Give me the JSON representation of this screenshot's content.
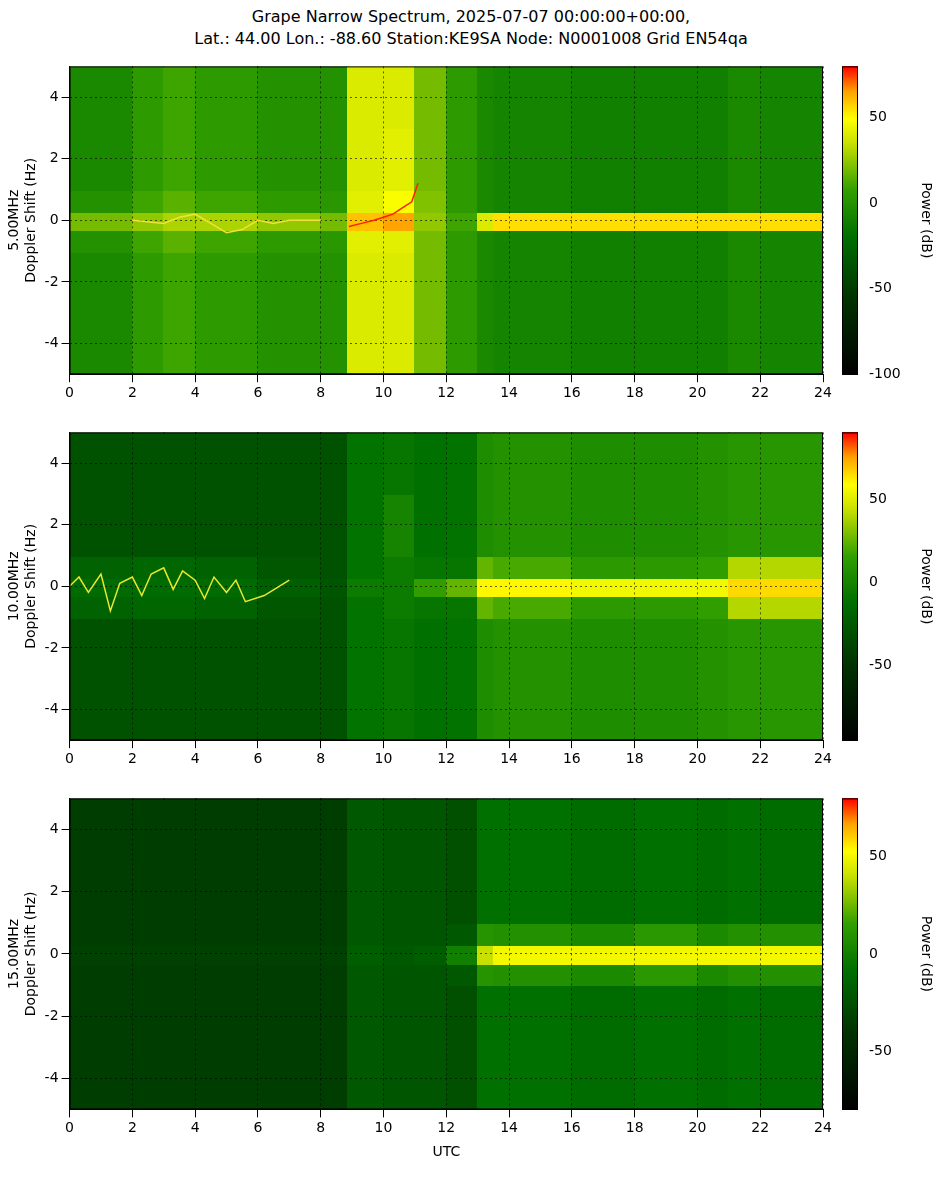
{
  "title": [
    "Grape Narrow Spectrum, 2025-07-07 00:00:00+00:00,",
    "Lat.: 44.00 Lon.: -88.60 Station:KE9SA Node: N0001008 Grid EN54qa"
  ],
  "chart_data": [
    {
      "type": "heatmap",
      "ylabel": [
        "5.00MHz",
        "Doppler Shift (Hz)"
      ],
      "xlim": [
        0,
        24
      ],
      "xticks": [
        0,
        2,
        4,
        6,
        8,
        10,
        12,
        14,
        16,
        18,
        20,
        22,
        24
      ],
      "ylim": [
        -5,
        5
      ],
      "yticks": [
        -4,
        -2,
        0,
        2,
        4
      ],
      "grid": true,
      "x_edges": [
        0,
        2,
        3,
        4,
        6,
        8,
        8.85,
        10,
        11,
        12,
        13,
        13.5,
        16,
        18,
        20,
        21,
        22,
        24
      ],
      "y_edges": [
        -5,
        -3,
        -1,
        -0.3,
        0.3,
        1,
        3,
        5
      ],
      "cells": [
        [
          -5,
          5,
          10,
          5,
          0,
          0,
          40,
          40,
          20,
          5,
          -5,
          -8,
          -10,
          -10,
          -10,
          -5,
          -8
        ],
        [
          -5,
          5,
          10,
          5,
          0,
          0,
          40,
          40,
          20,
          5,
          -5,
          -8,
          -10,
          -10,
          -10,
          -5,
          -8
        ],
        [
          0,
          10,
          15,
          10,
          5,
          3,
          42,
          42,
          20,
          5,
          -5,
          -8,
          -10,
          -10,
          -10,
          -5,
          -8
        ],
        [
          20,
          25,
          30,
          30,
          25,
          20,
          60,
          65,
          25,
          10,
          40,
          55,
          55,
          55,
          55,
          55,
          55
        ],
        [
          0,
          10,
          15,
          10,
          5,
          3,
          42,
          48,
          22,
          5,
          -5,
          -8,
          -10,
          -10,
          -10,
          -5,
          -8
        ],
        [
          -5,
          5,
          10,
          5,
          0,
          0,
          40,
          42,
          20,
          5,
          -5,
          -8,
          -10,
          -10,
          -10,
          -5,
          -8
        ],
        [
          -5,
          5,
          10,
          5,
          0,
          0,
          40,
          40,
          20,
          5,
          -5,
          -8,
          -10,
          -10,
          -10,
          -5,
          -8
        ]
      ],
      "colorbar": {
        "label": "Power (dB)",
        "range": [
          -100,
          80
        ],
        "ticks": [
          -100,
          -50,
          0,
          50
        ]
      },
      "traces": [
        {
          "x": [
            2,
            3,
            3.5,
            4,
            4.5,
            5,
            5.5,
            6,
            6.5,
            7,
            8
          ],
          "y": [
            0,
            -0.1,
            0.1,
            0.2,
            -0.1,
            -0.4,
            -0.3,
            0,
            -0.1,
            0,
            0
          ],
          "color": "#f0e040"
        },
        {
          "x": [
            8.9,
            9.3,
            9.7,
            10,
            10.3,
            10.6,
            10.9,
            11.1
          ],
          "y": [
            -0.2,
            -0.1,
            0,
            0.1,
            0.2,
            0.4,
            0.6,
            1.2
          ],
          "color": "#ff2000"
        }
      ]
    },
    {
      "type": "heatmap",
      "ylabel": [
        "10.00MHz",
        "Doppler Shift (Hz)"
      ],
      "xlim": [
        0,
        24
      ],
      "xticks": [
        0,
        2,
        4,
        6,
        8,
        10,
        12,
        14,
        16,
        18,
        20,
        22,
        24
      ],
      "ylim": [
        -5,
        5
      ],
      "yticks": [
        -4,
        -2,
        0,
        2,
        4
      ],
      "grid": true,
      "x_edges": [
        0,
        2,
        3,
        4,
        6,
        8,
        8.85,
        10,
        11,
        12,
        13,
        13.5,
        16,
        18,
        20,
        21,
        22,
        24
      ],
      "y_edges": [
        -5,
        -3,
        -1,
        -0.3,
        0.3,
        1,
        3,
        5
      ],
      "cells": [
        [
          -30,
          -30,
          -30,
          -30,
          -30,
          -30,
          -10,
          -8,
          -12,
          -10,
          5,
          8,
          5,
          5,
          8,
          10,
          10
        ],
        [
          -30,
          -30,
          -30,
          -30,
          -30,
          -30,
          -10,
          -8,
          -12,
          -10,
          5,
          8,
          5,
          5,
          8,
          10,
          10
        ],
        [
          -20,
          -18,
          -18,
          -20,
          -27,
          -30,
          -10,
          -5,
          -8,
          -8,
          25,
          20,
          12,
          12,
          15,
          40,
          40
        ],
        [
          -15,
          -15,
          -15,
          -15,
          -22,
          -28,
          -5,
          -5,
          15,
          25,
          60,
          60,
          55,
          55,
          55,
          65,
          65
        ],
        [
          -20,
          -18,
          -18,
          -20,
          -27,
          -30,
          -10,
          -5,
          -8,
          -8,
          25,
          20,
          12,
          12,
          15,
          40,
          40
        ],
        [
          -30,
          -30,
          -30,
          -30,
          -30,
          -30,
          -10,
          0,
          -12,
          -10,
          5,
          8,
          5,
          5,
          8,
          10,
          10
        ],
        [
          -30,
          -30,
          -30,
          -30,
          -30,
          -30,
          -10,
          -8,
          -12,
          -10,
          5,
          8,
          5,
          5,
          8,
          10,
          10
        ]
      ],
      "colorbar": {
        "label": "Power (dB)",
        "range": [
          -95,
          90
        ],
        "ticks": [
          -50,
          0,
          50
        ]
      },
      "traces": [
        {
          "x": [
            0,
            0.3,
            0.6,
            1,
            1.3,
            1.6,
            2,
            2.3,
            2.6,
            3,
            3.3,
            3.6,
            4,
            4.3,
            4.6,
            5,
            5.3,
            5.6,
            6.2,
            7
          ],
          "y": [
            0,
            0.3,
            -0.2,
            0.4,
            -0.8,
            0.1,
            0.3,
            -0.3,
            0.4,
            0.6,
            -0.1,
            0.5,
            0.2,
            -0.4,
            0.3,
            -0.2,
            0.2,
            -0.5,
            -0.3,
            0.2
          ],
          "color": "#e8e830"
        }
      ]
    },
    {
      "type": "heatmap",
      "ylabel": [
        "15.00MHz",
        "Doppler Shift (Hz)"
      ],
      "xlabel": "UTC",
      "xlim": [
        0,
        24
      ],
      "xticks": [
        0,
        2,
        4,
        6,
        8,
        10,
        12,
        14,
        16,
        18,
        20,
        22,
        24
      ],
      "ylim": [
        -5,
        5
      ],
      "yticks": [
        -4,
        -2,
        0,
        2,
        4
      ],
      "grid": true,
      "x_edges": [
        0,
        2,
        3,
        4,
        6,
        8,
        8.85,
        10,
        11,
        12,
        13,
        13.5,
        16,
        18,
        20,
        21,
        22,
        24
      ],
      "y_edges": [
        -5,
        -3,
        -1,
        -0.3,
        0.3,
        1,
        3,
        5
      ],
      "cells": [
        [
          -35,
          -35,
          -35,
          -35,
          -35,
          -35,
          -20,
          -22,
          -22,
          -25,
          -8,
          -8,
          -10,
          -8,
          -10,
          -8,
          -10
        ],
        [
          -35,
          -35,
          -35,
          -35,
          -35,
          -35,
          -20,
          -22,
          -22,
          -25,
          -8,
          -8,
          -10,
          -8,
          -10,
          -8,
          -10
        ],
        [
          -35,
          -35,
          -35,
          -35,
          -35,
          -35,
          -20,
          -22,
          -22,
          -20,
          10,
          8,
          5,
          12,
          5,
          8,
          8
        ],
        [
          -33,
          -33,
          -33,
          -33,
          -33,
          -33,
          -18,
          -20,
          -18,
          0,
          40,
          50,
          50,
          50,
          50,
          50,
          50
        ],
        [
          -35,
          -35,
          -35,
          -35,
          -35,
          -35,
          -20,
          -22,
          -22,
          -20,
          10,
          8,
          5,
          12,
          5,
          8,
          8
        ],
        [
          -35,
          -35,
          -35,
          -35,
          -35,
          -35,
          -20,
          -22,
          -22,
          -25,
          -8,
          -8,
          -10,
          -8,
          -10,
          -8,
          -10
        ],
        [
          -35,
          -35,
          -35,
          -35,
          -35,
          -35,
          -20,
          -22,
          -22,
          -25,
          -8,
          -8,
          -10,
          -8,
          -10,
          -8,
          -10
        ]
      ],
      "colorbar": {
        "label": "Power (dB)",
        "range": [
          -80,
          80
        ],
        "ticks": [
          -50,
          0,
          50
        ]
      },
      "traces": []
    }
  ]
}
